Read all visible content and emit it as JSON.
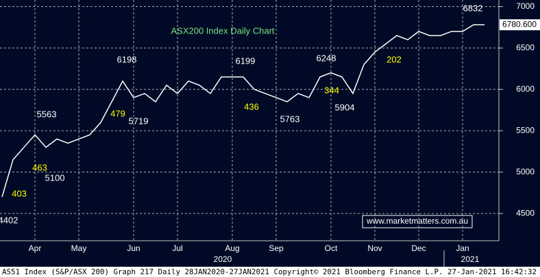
{
  "chart_data": {
    "type": "line",
    "title": "ASX200 Index Daily Chart",
    "website": "www.marketmatters.com.au",
    "years": [
      "2020",
      "2021"
    ],
    "footer": "AS51 Index (S&P/ASX 200) Graph 217  Daily 28JAN2020-27JAN2021 Copyright© 2021 Bloomberg Finance L.P. 27-Jan-2021 16:42:32",
    "categories": [
      null,
      null,
      null,
      "Apr",
      null,
      null,
      null,
      "May",
      null,
      null,
      null,
      null,
      "Jun",
      null,
      null,
      null,
      "Jul",
      null,
      null,
      null,
      null,
      "Aug",
      null,
      null,
      null,
      "Sep",
      null,
      null,
      null,
      null,
      "Oct",
      null,
      null,
      null,
      "Nov",
      null,
      null,
      null,
      "Dec",
      null,
      null,
      null,
      "Jan",
      null,
      null
    ],
    "series": [
      {
        "name": "AS51 Index",
        "color": "#ffffff",
        "values": [
          4700,
          5150,
          5300,
          5450,
          5300,
          5400,
          5350,
          5400,
          5450,
          5600,
          5850,
          6100,
          5900,
          5950,
          5850,
          6050,
          5950,
          6100,
          6050,
          5950,
          6150,
          6150,
          6150,
          6000,
          5950,
          5900,
          5850,
          5950,
          5900,
          6150,
          6200,
          6150,
          5950,
          6300,
          6450,
          6550,
          6650,
          6600,
          6700,
          6650,
          6650,
          6700,
          6700,
          6780,
          6780.6
        ],
        "value_labels": [
          null,
          null,
          null,
          null,
          null,
          null,
          null,
          null,
          null,
          null,
          null,
          null,
          null,
          null,
          null,
          null,
          null,
          null,
          null,
          null,
          null,
          null,
          null,
          null,
          null,
          null,
          null,
          null,
          null,
          null,
          null,
          null,
          null,
          null,
          null,
          null,
          null,
          null,
          null,
          null,
          null,
          null,
          null,
          null,
          "6780.600"
        ]
      }
    ],
    "ylim": [
      4170,
      7080
    ],
    "yticks": [
      4500,
      5000,
      5500,
      6000,
      6500,
      7000
    ],
    "grid": true,
    "annotations": [
      {
        "text": "4402",
        "color": "#ffffff"
      },
      {
        "text": "403",
        "color": "#ffff00"
      },
      {
        "text": "463",
        "color": "#ffff00"
      },
      {
        "text": "5100",
        "color": "#ffffff"
      },
      {
        "text": "5563",
        "color": "#ffffff"
      },
      {
        "text": "479",
        "color": "#ffff00"
      },
      {
        "text": "5719",
        "color": "#ffffff"
      },
      {
        "text": "6198",
        "color": "#ffffff"
      },
      {
        "text": "6199",
        "color": "#ffffff"
      },
      {
        "text": "436",
        "color": "#ffff00"
      },
      {
        "text": "5763",
        "color": "#ffffff"
      },
      {
        "text": "6248",
        "color": "#ffffff"
      },
      {
        "text": "344",
        "color": "#ffff00"
      },
      {
        "text": "5904",
        "color": "#ffffff"
      },
      {
        "text": "202",
        "color": "#ffff00"
      },
      {
        "text": "6832",
        "color": "#ffffff"
      }
    ]
  }
}
